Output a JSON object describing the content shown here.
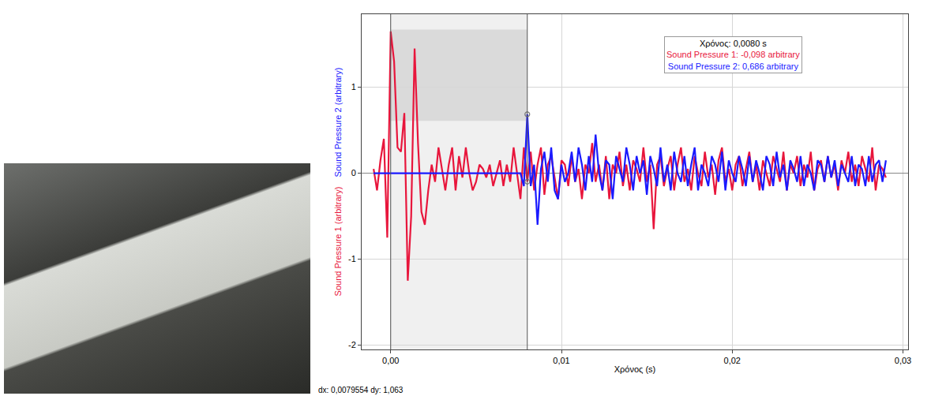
{
  "chart_data": {
    "type": "line",
    "x_label": "Χρόνος (s)",
    "y_label": [
      "Sound Pressure 1 (arbitrary)",
      "Sound Pressure 2 (arbitrary)"
    ],
    "xlim": [
      -0.0017,
      0.0303
    ],
    "ylim": [
      -2.05,
      1.85
    ],
    "xticks": [
      {
        "value": 0,
        "label": "0,00"
      },
      {
        "value": 0.01,
        "label": "0,01"
      },
      {
        "value": 0.02,
        "label": "0,02"
      },
      {
        "value": 0.03,
        "label": "0,03"
      }
    ],
    "yticks": [
      -2,
      -1,
      0,
      1
    ],
    "grid": true,
    "x": [
      -0.001,
      -0.0008,
      -0.0006,
      -0.0004,
      -0.0002,
      0,
      0.0002,
      0.0004,
      0.0006,
      0.0008,
      0.001,
      0.0012,
      0.0014,
      0.0016,
      0.0018,
      0.002,
      0.0022,
      0.0024,
      0.0026,
      0.0028,
      0.003,
      0.0032,
      0.0034,
      0.0036,
      0.0038,
      0.004,
      0.0042,
      0.0044,
      0.0046,
      0.0048,
      0.005,
      0.0052,
      0.0054,
      0.0056,
      0.0058,
      0.006,
      0.0062,
      0.0064,
      0.0066,
      0.0068,
      0.007,
      0.0072,
      0.0074,
      0.0076,
      0.0078,
      0.008,
      0.0082,
      0.0084,
      0.0086,
      0.0088,
      0.009,
      0.0092,
      0.0094,
      0.0096,
      0.0098,
      0.01,
      0.0102,
      0.0104,
      0.0106,
      0.0108,
      0.011,
      0.0112,
      0.0114,
      0.0116,
      0.0118,
      0.012,
      0.0122,
      0.0124,
      0.0126,
      0.0128,
      0.013,
      0.0132,
      0.0134,
      0.0136,
      0.0138,
      0.014,
      0.0142,
      0.0144,
      0.0146,
      0.0148,
      0.015,
      0.0152,
      0.0154,
      0.0156,
      0.0158,
      0.016,
      0.0162,
      0.0164,
      0.0166,
      0.0168,
      0.017,
      0.0172,
      0.0174,
      0.0176,
      0.0178,
      0.018,
      0.0182,
      0.0184,
      0.0186,
      0.0188,
      0.019,
      0.0192,
      0.0194,
      0.0196,
      0.0198,
      0.02,
      0.0202,
      0.0204,
      0.0206,
      0.0208,
      0.021,
      0.0212,
      0.0214,
      0.0216,
      0.0218,
      0.022,
      0.0222,
      0.0224,
      0.0226,
      0.0228,
      0.023,
      0.0232,
      0.0234,
      0.0236,
      0.0238,
      0.024,
      0.0242,
      0.0244,
      0.0246,
      0.0248,
      0.025,
      0.0252,
      0.0254,
      0.0256,
      0.0258,
      0.026,
      0.0262,
      0.0264,
      0.0266,
      0.0268,
      0.027,
      0.0272,
      0.0274,
      0.0276,
      0.0278,
      0.028,
      0.0282,
      0.0284,
      0.0286,
      0.0288,
      0.029
    ],
    "series": [
      {
        "name": "Sound Pressure 1",
        "color": "#e8163c",
        "values": [
          0.05,
          -0.2,
          0.15,
          0.4,
          -0.75,
          1.65,
          1.3,
          0.3,
          0.25,
          0.7,
          -1.25,
          -0.5,
          1.45,
          0.35,
          -0.45,
          -0.6,
          -0.2,
          0.1,
          -0.1,
          0.3,
          0.05,
          -0.2,
          0.1,
          0.3,
          -0.2,
          0.2,
          -0.05,
          0.3,
          0.0,
          -0.2,
          -0.1,
          0.1,
          0.05,
          -0.05,
          0.1,
          -0.15,
          0.0,
          0.15,
          -0.15,
          0.1,
          -0.1,
          0.3,
          0.0,
          -0.3,
          0.3,
          -0.098,
          0.25,
          -0.2,
          0.1,
          0.3,
          -0.25,
          0.1,
          0.2,
          -0.05,
          -0.3,
          0.15,
          0.1,
          -0.15,
          0.2,
          -0.1,
          0.05,
          -0.3,
          0.1,
          0.0,
          0.35,
          -0.1,
          0.1,
          -0.2,
          0.2,
          -0.3,
          0.1,
          0.0,
          0.25,
          -0.15,
          0.1,
          -0.2,
          0.15,
          0.05,
          -0.1,
          0.3,
          -0.1,
          0.1,
          -0.65,
          0.1,
          0.2,
          -0.15,
          0.05,
          0.2,
          -0.2,
          0.1,
          0.3,
          -0.1,
          0.05,
          -0.2,
          0.2,
          0.0,
          -0.15,
          0.25,
          -0.05,
          0.1,
          -0.25,
          0.15,
          0.3,
          -0.1,
          0.05,
          -0.2,
          0.1,
          0.2,
          -0.15,
          0.05,
          0.25,
          -0.1,
          0.1,
          -0.2,
          0.15,
          0.0,
          -0.15,
          0.2,
          0.05,
          -0.1,
          0.25,
          -0.2,
          0.1,
          0.0,
          0.2,
          -0.15,
          0.1,
          -0.05,
          0.25,
          -0.2,
          0.05,
          0.15,
          -0.1,
          0.2,
          -0.05,
          0.1,
          -0.2,
          0.15,
          0.0,
          0.25,
          -0.1,
          0.1,
          -0.15,
          0.2,
          0.05,
          -0.1,
          0.3,
          -0.2,
          0.1,
          0.05,
          -0.05
        ]
      },
      {
        "name": "Sound Pressure 2",
        "color": "#1a1aff",
        "values": [
          0,
          0,
          0,
          0,
          0,
          0,
          0,
          0,
          0,
          0,
          0,
          0,
          0,
          0,
          0,
          0,
          0,
          0,
          0,
          0,
          0,
          0,
          0,
          0,
          0,
          0,
          0,
          0,
          0,
          0,
          0,
          0,
          0,
          0,
          0,
          0,
          0,
          0,
          0,
          0,
          0,
          0,
          0,
          0,
          -0.15,
          0.686,
          -0.15,
          0.1,
          -0.6,
          0.05,
          0.25,
          -0.1,
          0.3,
          -0.2,
          -0.3,
          0.1,
          -0.1,
          0.0,
          0.25,
          -0.1,
          0.3,
          0.1,
          -0.2,
          0.2,
          -0.1,
          0.45,
          0.0,
          -0.2,
          0.15,
          0.1,
          -0.3,
          0.2,
          0.05,
          -0.1,
          0.3,
          0.1,
          -0.2,
          0.2,
          0.0,
          0.15,
          -0.25,
          0.2,
          0.05,
          -0.15,
          0.3,
          -0.1,
          0.1,
          -0.2,
          0.25,
          0.0,
          -0.1,
          0.2,
          -0.15,
          0.1,
          0.3,
          -0.2,
          0.1,
          0.0,
          -0.15,
          0.2,
          0.1,
          -0.1,
          0.25,
          -0.2,
          0.15,
          0.0,
          -0.1,
          0.2,
          0.05,
          -0.15,
          0.2,
          -0.1,
          0.15,
          0.0,
          -0.2,
          0.2,
          0.1,
          -0.15,
          0.25,
          -0.05,
          0.1,
          -0.2,
          0.15,
          0.05,
          -0.1,
          0.2,
          -0.15,
          0.1,
          0.0,
          -0.2,
          0.15,
          0.1,
          -0.1,
          0.2,
          -0.05,
          0.15,
          -0.15,
          0.1,
          0.0,
          -0.1,
          0.2,
          -0.15,
          0.1,
          0.05,
          -0.15,
          0.2,
          -0.1,
          0.1,
          0.15,
          -0.1,
          0.15
        ]
      }
    ],
    "selection": {
      "x": [
        0,
        0.008
      ],
      "highlight_y": [
        0.61,
        1.67
      ]
    },
    "cursor": {
      "x": 0.008,
      "values": [
        -0.098,
        0.686
      ]
    },
    "readout": {
      "title": "Χρόνος: 0,0080 s",
      "lines": [
        "Sound Pressure 1: -0,098 arbitrary",
        "Sound Pressure 2: 0,686 arbitrary"
      ]
    },
    "delta_text": "dx: 0,0079554 dy: 1,063"
  }
}
